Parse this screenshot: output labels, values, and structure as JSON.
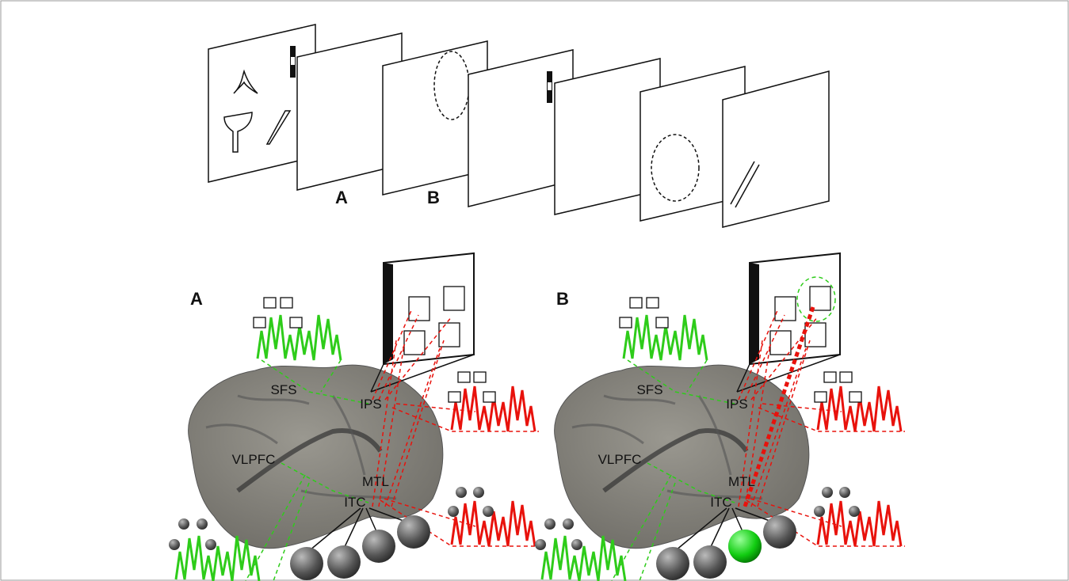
{
  "top_sequence": {
    "labels": [
      "A",
      "B"
    ]
  },
  "panels": [
    {
      "label": "A",
      "regions": {
        "sfs": "SFS",
        "ips": "IPS",
        "vlpfc": "VLPFC",
        "mtl": "MTL",
        "itc": "ITC"
      }
    },
    {
      "label": "B",
      "regions": {
        "sfs": "SFS",
        "ips": "IPS",
        "vlpfc": "VLPFC",
        "mtl": "MTL",
        "itc": "ITC"
      }
    }
  ]
}
